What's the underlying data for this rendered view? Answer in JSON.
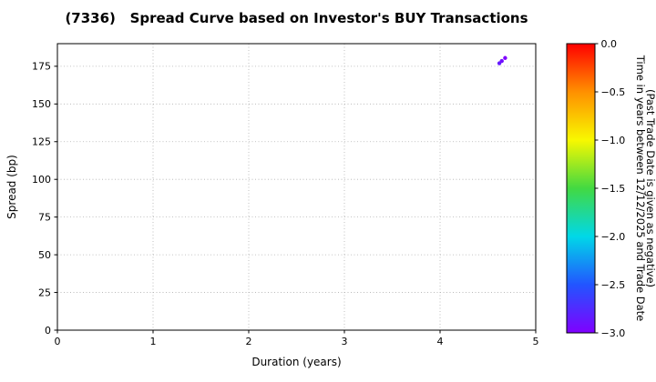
{
  "chart_data": {
    "type": "scatter",
    "title": "(7336)   Spread Curve based on Investor's BUY Transactions",
    "xlabel": "Duration (years)",
    "ylabel": "Spread (bp)",
    "xlim": [
      0,
      5
    ],
    "ylim": [
      0,
      190
    ],
    "grid": true,
    "xticks": {
      "values": [
        0,
        1,
        2,
        3,
        4,
        5
      ],
      "labels": [
        "0",
        "1",
        "2",
        "3",
        "4",
        "5"
      ]
    },
    "yticks": {
      "values": [
        0,
        25,
        50,
        75,
        100,
        125,
        150,
        175
      ],
      "labels": [
        "0",
        "25",
        "50",
        "75",
        "100",
        "125",
        "150",
        "175"
      ]
    },
    "points": [
      {
        "x": 4.62,
        "y": 177.0,
        "c": -2.85
      },
      {
        "x": 4.645,
        "y": 178.5,
        "c": -2.92
      },
      {
        "x": 4.68,
        "y": 180.5,
        "c": -3.0
      }
    ],
    "marker_radius": 2.2,
    "colorbar": {
      "colormap": "rainbow",
      "range": [
        0,
        -3
      ],
      "ticks": {
        "values": [
          0,
          -0.5,
          -1,
          -1.5,
          -2,
          -2.5,
          -3
        ],
        "labels": [
          "0.0",
          "−0.5",
          "−1.0",
          "−1.5",
          "−2.0",
          "−2.5",
          "−3.0"
        ]
      },
      "label_line1": "Time in years between 12/12/2025 and Trade Date",
      "label_line2": "(Past Trade Date is given as negative)",
      "stops": [
        "#ff0000",
        "#ff9000",
        "#f8f800",
        "#42d942",
        "#00d8e8",
        "#2255ff",
        "#8000ff"
      ]
    },
    "colors": {
      "grid": "#b0b0b0",
      "axis": "#000000",
      "point_cluster": "#6d11ff"
    }
  }
}
